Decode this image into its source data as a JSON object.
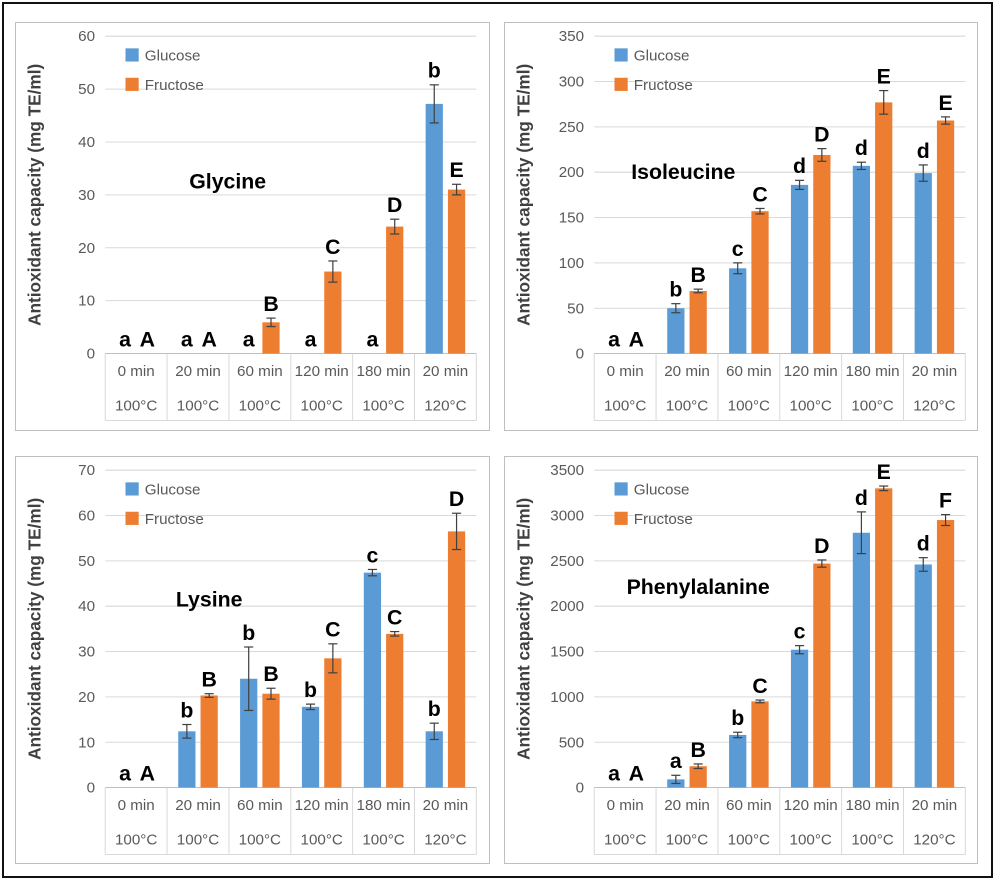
{
  "colors": {
    "glucose": "#5B9BD5",
    "fructose": "#ED7D31",
    "gridline": "#D9D9D9",
    "axis_line": "#BFBFBF",
    "table_border": "#D9D9D9",
    "tick_text": "#595959",
    "category_text": "#595959",
    "legend_text": "#595959",
    "letter_text": "#000000",
    "title_text": "#000000",
    "ylabel_text": "#404040",
    "error_bar": "#404040",
    "frame_border": "#111111",
    "panel_border": "#BFBFBF"
  },
  "legend": {
    "items": [
      {
        "label": "Glucose",
        "color": "#5B9BD5"
      },
      {
        "label": "Fructose",
        "color": "#ED7D31"
      }
    ]
  },
  "chart_data": [
    {
      "type": "bar",
      "title": "Glycine",
      "title_pos": {
        "fx": 0.33,
        "fy": 0.48
      },
      "ylabel": "Antioxidant capacity (mg TE/ml)",
      "ylim": [
        0,
        60
      ],
      "ytick_step": 10,
      "grid": true,
      "legend_position": "top-left-inside",
      "categories": [
        {
          "time": "0 min",
          "temp": "100°C"
        },
        {
          "time": "20 min",
          "temp": "100°C"
        },
        {
          "time": "60 min",
          "temp": "100°C"
        },
        {
          "time": "120 min",
          "temp": "100°C"
        },
        {
          "time": "180 min",
          "temp": "100°C"
        },
        {
          "time": "20 min",
          "temp": "120°C"
        }
      ],
      "series": [
        {
          "name": "Glucose",
          "color": "#5B9BD5",
          "values": [
            0,
            0,
            0,
            0,
            0,
            47.2
          ],
          "errors": [
            0,
            0,
            0,
            0,
            0,
            3.6
          ],
          "letters": [
            "a",
            "a",
            "a",
            "a",
            "a",
            "b"
          ]
        },
        {
          "name": "Fructose",
          "color": "#ED7D31",
          "values": [
            0,
            0,
            5.9,
            15.5,
            24,
            31
          ],
          "errors": [
            0,
            0,
            0.8,
            2,
            1.4,
            1
          ],
          "letters": [
            "A",
            "A",
            "B",
            "C",
            "D",
            "E"
          ]
        }
      ]
    },
    {
      "type": "bar",
      "title": "Isoleucine",
      "title_pos": {
        "fx": 0.24,
        "fy": 0.45
      },
      "ylabel": "Antioxidant capacity (mg TE/ml)",
      "ylim": [
        0,
        350
      ],
      "ytick_step": 50,
      "grid": true,
      "legend_position": "top-left-inside",
      "categories": [
        {
          "time": "0 min",
          "temp": "100°C"
        },
        {
          "time": "20 min",
          "temp": "100°C"
        },
        {
          "time": "60 min",
          "temp": "100°C"
        },
        {
          "time": "120 min",
          "temp": "100°C"
        },
        {
          "time": "180 min",
          "temp": "100°C"
        },
        {
          "time": "20 min",
          "temp": "120°C"
        }
      ],
      "series": [
        {
          "name": "Glucose",
          "color": "#5B9BD5",
          "values": [
            0,
            50,
            94,
            186,
            207,
            199
          ],
          "errors": [
            0,
            5,
            6,
            5,
            4,
            9
          ],
          "letters": [
            "a",
            "b",
            "c",
            "d",
            "d",
            "d"
          ]
        },
        {
          "name": "Fructose",
          "color": "#ED7D31",
          "values": [
            0,
            69,
            157,
            219,
            277,
            257
          ],
          "errors": [
            0,
            2,
            3,
            7,
            13,
            4
          ],
          "letters": [
            "A",
            "B",
            "C",
            "D",
            "E",
            "E"
          ]
        }
      ]
    },
    {
      "type": "bar",
      "title": "Lysine",
      "title_pos": {
        "fx": 0.28,
        "fy": 0.43
      },
      "ylabel": "Antioxidant capacity (mg TE/ml)",
      "ylim": [
        0,
        70
      ],
      "ytick_step": 10,
      "grid": true,
      "legend_position": "top-left-inside",
      "categories": [
        {
          "time": "0 min",
          "temp": "100°C"
        },
        {
          "time": "20 min",
          "temp": "100°C"
        },
        {
          "time": "60 min",
          "temp": "100°C"
        },
        {
          "time": "120 min",
          "temp": "100°C"
        },
        {
          "time": "180 min",
          "temp": "100°C"
        },
        {
          "time": "20 min",
          "temp": "120°C"
        }
      ],
      "series": [
        {
          "name": "Glucose",
          "color": "#5B9BD5",
          "values": [
            0,
            12.4,
            24,
            17.8,
            47.4,
            12.4
          ],
          "errors": [
            0,
            1.5,
            7,
            0.6,
            0.7,
            1.8
          ],
          "letters": [
            "a",
            "b",
            "b",
            "b",
            "c",
            "b"
          ]
        },
        {
          "name": "Fructose",
          "color": "#ED7D31",
          "values": [
            0,
            20.3,
            20.7,
            28.5,
            33.9,
            56.5
          ],
          "errors": [
            0,
            0.4,
            1.2,
            3.2,
            0.5,
            4
          ],
          "letters": [
            "A",
            "B",
            "B",
            "C",
            "C",
            "D"
          ]
        }
      ]
    },
    {
      "type": "bar",
      "title": "Phenylalanine",
      "title_pos": {
        "fx": 0.28,
        "fy": 0.39
      },
      "ylabel": "Antioxidant capacity (mg TE/ml)",
      "ylim": [
        0,
        3500
      ],
      "ytick_step": 500,
      "grid": true,
      "legend_position": "top-left-inside",
      "categories": [
        {
          "time": "0 min",
          "temp": "100°C"
        },
        {
          "time": "20 min",
          "temp": "100°C"
        },
        {
          "time": "60 min",
          "temp": "100°C"
        },
        {
          "time": "120 min",
          "temp": "100°C"
        },
        {
          "time": "180 min",
          "temp": "100°C"
        },
        {
          "time": "20 min",
          "temp": "120°C"
        }
      ],
      "series": [
        {
          "name": "Glucose",
          "color": "#5B9BD5",
          "values": [
            0,
            90,
            580,
            1520,
            2810,
            2460
          ],
          "errors": [
            0,
            45,
            30,
            45,
            230,
            75
          ],
          "letters": [
            "a",
            "a",
            "b",
            "c",
            "d",
            "d"
          ]
        },
        {
          "name": "Fructose",
          "color": "#ED7D31",
          "values": [
            0,
            235,
            950,
            2470,
            3300,
            2950
          ],
          "errors": [
            0,
            25,
            15,
            40,
            25,
            60
          ],
          "letters": [
            "A",
            "B",
            "C",
            "D",
            "E",
            "F"
          ]
        }
      ]
    }
  ]
}
